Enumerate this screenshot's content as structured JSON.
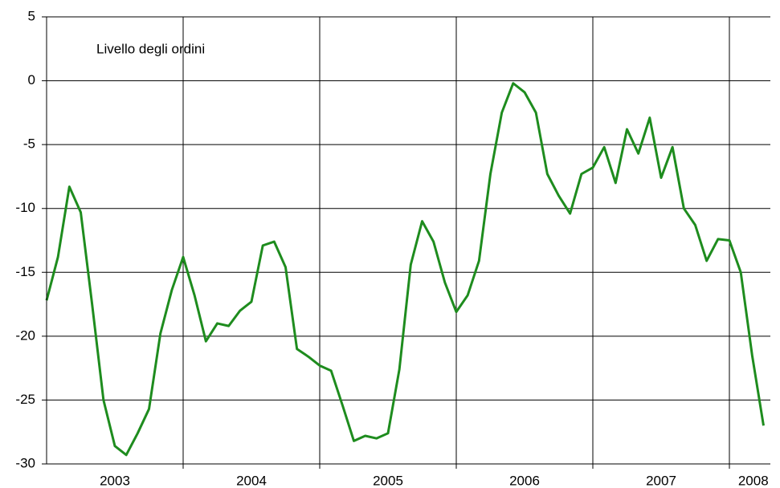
{
  "chart_data": {
    "type": "line",
    "x": [
      0,
      1,
      2,
      3,
      4,
      5,
      6,
      7,
      8,
      9,
      10,
      11,
      12,
      13,
      14,
      15,
      16,
      17,
      18,
      19,
      20,
      21,
      22,
      23,
      24,
      25,
      26,
      27,
      28,
      29,
      30,
      31,
      32,
      33,
      34,
      35,
      36,
      37,
      38,
      39,
      40,
      41,
      42,
      43,
      44,
      45,
      46,
      47,
      48,
      49,
      50,
      51,
      52,
      53,
      54,
      55,
      56,
      57,
      58,
      59,
      60,
      61,
      62,
      63
    ],
    "series": [
      {
        "name": "Livello degli ordini",
        "color": "#1e8c1e",
        "values": [
          -17.2,
          -13.8,
          -8.3,
          -10.3,
          -17.5,
          -25,
          -28.6,
          -29.3,
          -27.6,
          -25.7,
          -19.8,
          -16.4,
          -13.8,
          -16.8,
          -20.4,
          -19.0,
          -19.2,
          -18.0,
          -17.3,
          -12.9,
          -12.6,
          -14.6,
          -21.0,
          -21.6,
          -22.3,
          -22.7,
          -25.4,
          -28.2,
          -27.8,
          -28.0,
          -27.6,
          -22.6,
          -14.4,
          -11.0,
          -12.6,
          -15.8,
          -18.1,
          -16.8,
          -14.1,
          -7.3,
          -2.5,
          -0.2,
          -0.9,
          -2.5,
          -7.3,
          -9.0,
          -10.4,
          -7.3,
          -6.8,
          -5.2,
          -8.0,
          -3.8,
          -5.7,
          -2.9,
          -7.6,
          -5.2,
          -10.0,
          -11.3,
          -14.1,
          -12.4,
          -12.5,
          -15.0,
          -21.5,
          -27.0
        ]
      }
    ],
    "xlim": [
      0,
      63.6
    ],
    "xticks": [
      {
        "value": 6,
        "label": "2003"
      },
      {
        "value": 18,
        "label": "2004"
      },
      {
        "value": 30,
        "label": "2005"
      },
      {
        "value": 42,
        "label": "2006"
      },
      {
        "value": 54,
        "label": "2007"
      },
      {
        "value": 62.1,
        "label": "2008"
      }
    ],
    "xgrid": [
      12,
      24,
      36,
      48,
      60
    ],
    "ylim": [
      -30,
      5
    ],
    "yticks": [
      -30,
      -25,
      -20,
      -15,
      -10,
      -5,
      0,
      5
    ],
    "grid": true
  }
}
